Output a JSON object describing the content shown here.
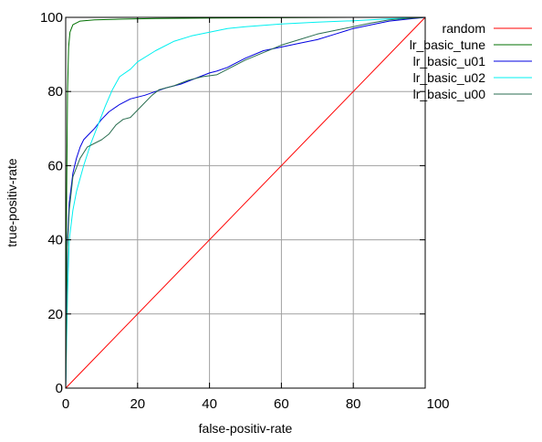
{
  "chart_data": {
    "type": "line",
    "xlabel": "false-positiv-rate",
    "ylabel": "true-positiv-rate",
    "xlim": [
      0,
      100
    ],
    "ylim": [
      0,
      100
    ],
    "x_ticks": [
      0,
      20,
      40,
      60,
      80,
      100
    ],
    "y_ticks": [
      0,
      20,
      40,
      60,
      80,
      100
    ],
    "grid": true,
    "legend_position": "top-right, outside plot",
    "series": [
      {
        "name": "random",
        "color": "#ff0000",
        "x": [
          0,
          100
        ],
        "y": [
          0,
          100
        ]
      },
      {
        "name": "lr_basic_tune",
        "color": "#007000",
        "x": [
          0,
          0.2,
          0.5,
          0.8,
          1.2,
          2,
          4,
          8,
          15,
          25,
          40,
          60,
          80,
          100
        ],
        "y": [
          0,
          45,
          80,
          92,
          96,
          98,
          99,
          99.3,
          99.5,
          99.7,
          99.8,
          99.9,
          100,
          100
        ]
      },
      {
        "name": "lr_basic_u01",
        "color": "#0000e0",
        "x": [
          0,
          0.5,
          1,
          2,
          3,
          4,
          5,
          6,
          8,
          10,
          12,
          15,
          18,
          20,
          22,
          25,
          28,
          32,
          36,
          40,
          42,
          45,
          48,
          50,
          55,
          60,
          65,
          70,
          75,
          80,
          85,
          90,
          95,
          100
        ],
        "y": [
          0,
          40,
          50,
          58,
          62,
          65,
          67,
          68,
          70,
          72.5,
          74.5,
          76.5,
          78,
          78.5,
          79,
          80,
          81,
          82,
          83.5,
          85,
          85.5,
          86.5,
          88,
          89,
          91,
          92,
          93,
          94,
          95.5,
          97,
          98,
          99,
          99.5,
          100
        ]
      },
      {
        "name": "lr_basic_u02",
        "color": "#00f0f0",
        "x": [
          0,
          0.5,
          1,
          2,
          3,
          5,
          7,
          9,
          11,
          13,
          15,
          18,
          20,
          25,
          30,
          35,
          40,
          45,
          50,
          60,
          70,
          80,
          90,
          100
        ],
        "y": [
          0,
          25,
          40,
          48,
          53,
          60,
          66,
          71,
          76,
          80.5,
          84,
          86,
          88,
          91,
          93.5,
          95,
          96,
          97,
          97.5,
          98.2,
          98.7,
          99.1,
          99.6,
          100
        ]
      },
      {
        "name": "lr_basic_u00",
        "color": "#2a6e50",
        "x": [
          0,
          0.5,
          1,
          2,
          4,
          6,
          8,
          10,
          12,
          14,
          16,
          18,
          20,
          22,
          24,
          26,
          28,
          30,
          34,
          38,
          42,
          46,
          50,
          55,
          60,
          65,
          70,
          75,
          80,
          85,
          90,
          95,
          100
        ],
        "y": [
          0,
          38,
          48,
          57,
          62,
          65,
          66,
          67,
          68.5,
          71,
          72.5,
          73,
          75,
          77,
          79,
          80.5,
          81,
          81.5,
          83,
          84,
          84.5,
          86.5,
          88.5,
          90.5,
          92.5,
          94,
          95.5,
          96.5,
          97.5,
          98.5,
          99.3,
          99.7,
          100
        ]
      }
    ]
  }
}
